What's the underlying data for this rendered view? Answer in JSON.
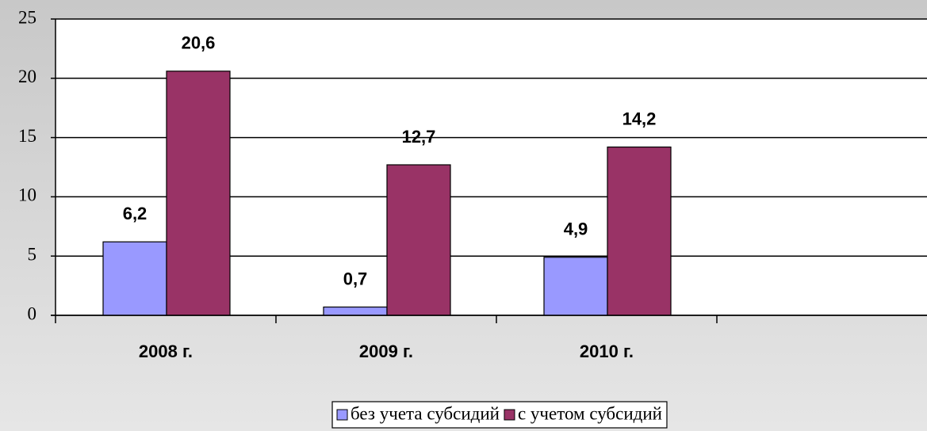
{
  "chart_data": {
    "type": "bar",
    "categories": [
      "2008 г.",
      "2009 г.",
      "2010 г.",
      null
    ],
    "series": [
      {
        "name": "без учета субсидий",
        "color": "#9999ff",
        "values": [
          6.2,
          0.7,
          4.9,
          null
        ],
        "value_labels": [
          "6,2",
          "0,7",
          "4,9",
          null
        ]
      },
      {
        "name": "с учетом субсидий",
        "color": "#993366",
        "values": [
          20.6,
          12.7,
          14.2,
          null
        ],
        "value_labels": [
          "20,6",
          "12,7",
          "14,2",
          null
        ]
      }
    ],
    "ylim": [
      0,
      25
    ],
    "yticks": [
      0,
      5,
      10,
      15,
      20,
      25
    ],
    "grid": true,
    "legend": "bottom"
  }
}
